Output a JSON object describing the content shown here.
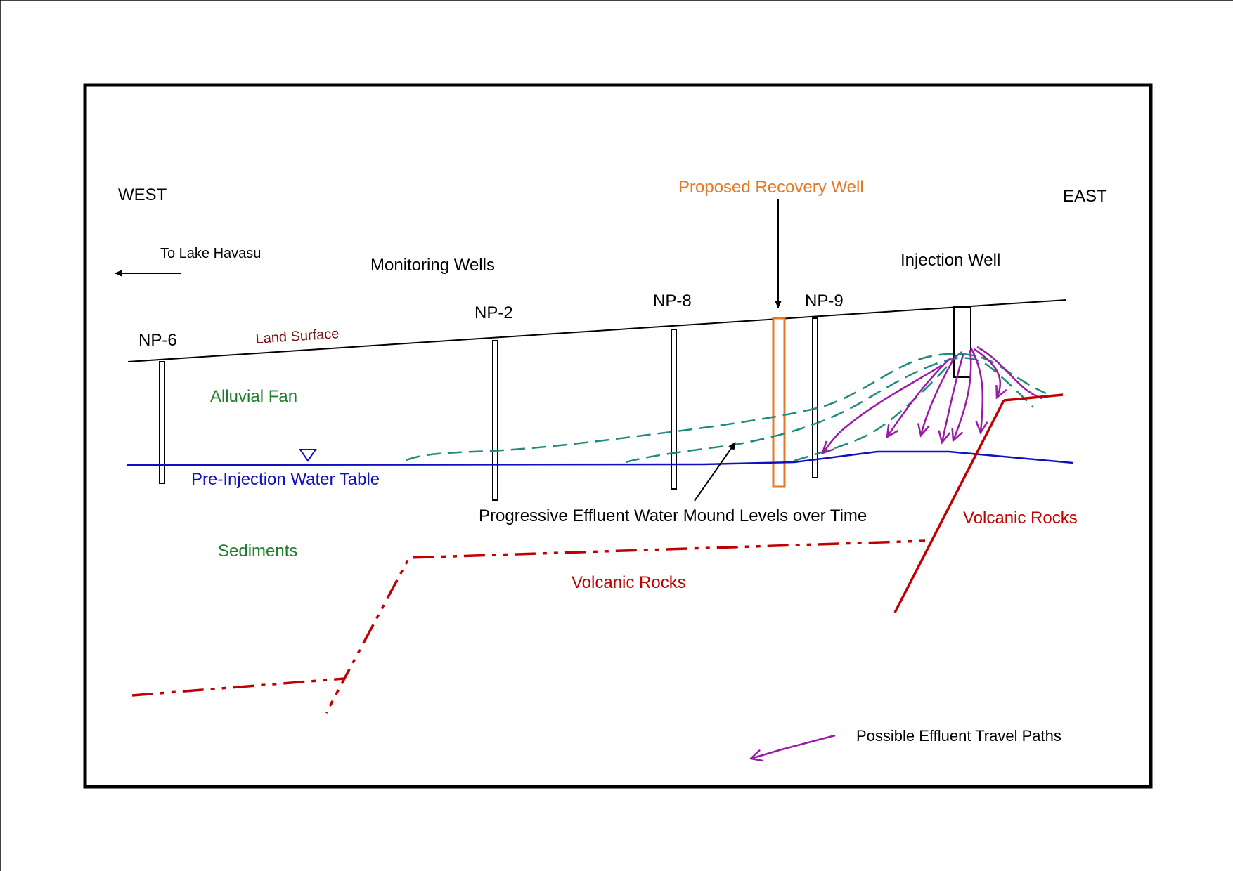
{
  "labels": {
    "west": "WEST",
    "east": "EAST",
    "to_lake": "To Lake Havasu",
    "monitoring_wells": "Monitoring Wells",
    "proposed_recovery_well": "Proposed Recovery Well",
    "injection_well": "Injection Well",
    "land_surface": "Land Surface",
    "alluvial_fan": "Alluvial Fan",
    "pre_injection_water_table": "Pre-Injection Water Table",
    "sediments": "Sediments",
    "mound_levels": "Progressive Effluent Water Mound Levels over Time",
    "volcanic_rocks_center": "Volcanic Rocks",
    "volcanic_rocks_right": "Volcanic Rocks",
    "legend_paths": "Possible Effluent Travel Paths"
  },
  "wells": {
    "np6": "NP-6",
    "np2": "NP-2",
    "np8": "NP-8",
    "np9": "NP-9"
  },
  "colors": {
    "black": "#000000",
    "orange": "#e87722",
    "green": "#1e7f2a",
    "blue": "#1010c0",
    "dark_red": "#c00000",
    "land_surface_text": "#7a1010",
    "teal": "#1f8a80",
    "purple": "#9a1aa8"
  }
}
